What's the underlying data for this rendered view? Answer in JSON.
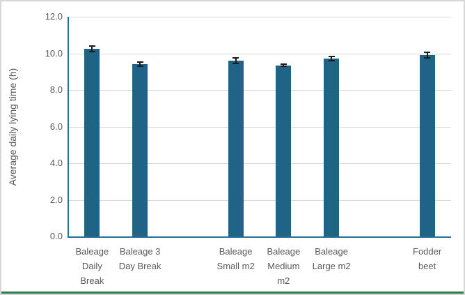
{
  "frame": {
    "border_color": "#d6d6d6",
    "bottom_line_color": "#2e7d4f",
    "background": "#ffffff"
  },
  "chart_data": {
    "type": "bar",
    "title": "",
    "xlabel": "",
    "ylabel": "Average daily lying time (h)",
    "ylim": [
      0,
      12
    ],
    "ytick_step": 2,
    "ytick_labels": [
      "0.0",
      "2.0",
      "4.0",
      "6.0",
      "8.0",
      "10.0",
      "12.0"
    ],
    "grid": true,
    "legend": "none",
    "categories": [
      "Baleage Daily Break",
      "Baleage 3 Day Break",
      "Baleage Small m2",
      "Baleage Medium m2",
      "Baleage Large m2",
      "Fodder beet"
    ],
    "category_label_lines": [
      [
        "Baleage",
        "Daily",
        "Break"
      ],
      [
        "Baleage 3",
        "Day Break"
      ],
      [
        "Baleage",
        "Small m2"
      ],
      [
        "Baleage",
        "Medium",
        "m2"
      ],
      [
        "Baleage",
        "Large m2"
      ],
      [
        "Fodder",
        "beet"
      ]
    ],
    "values": [
      10.25,
      9.4,
      9.6,
      9.35,
      9.7,
      9.9
    ],
    "error_bars": [
      0.2,
      0.15,
      0.2,
      0.1,
      0.15,
      0.2
    ],
    "slot_indices": [
      0,
      1,
      3,
      4,
      5,
      7
    ],
    "total_slots": 8,
    "bar_color": "#1f6387",
    "axis_line_color": "#2a6f96",
    "gridline_color": "#d9d9d9",
    "error_bar_color": "#1a1a1a",
    "label_color": "#595959"
  }
}
